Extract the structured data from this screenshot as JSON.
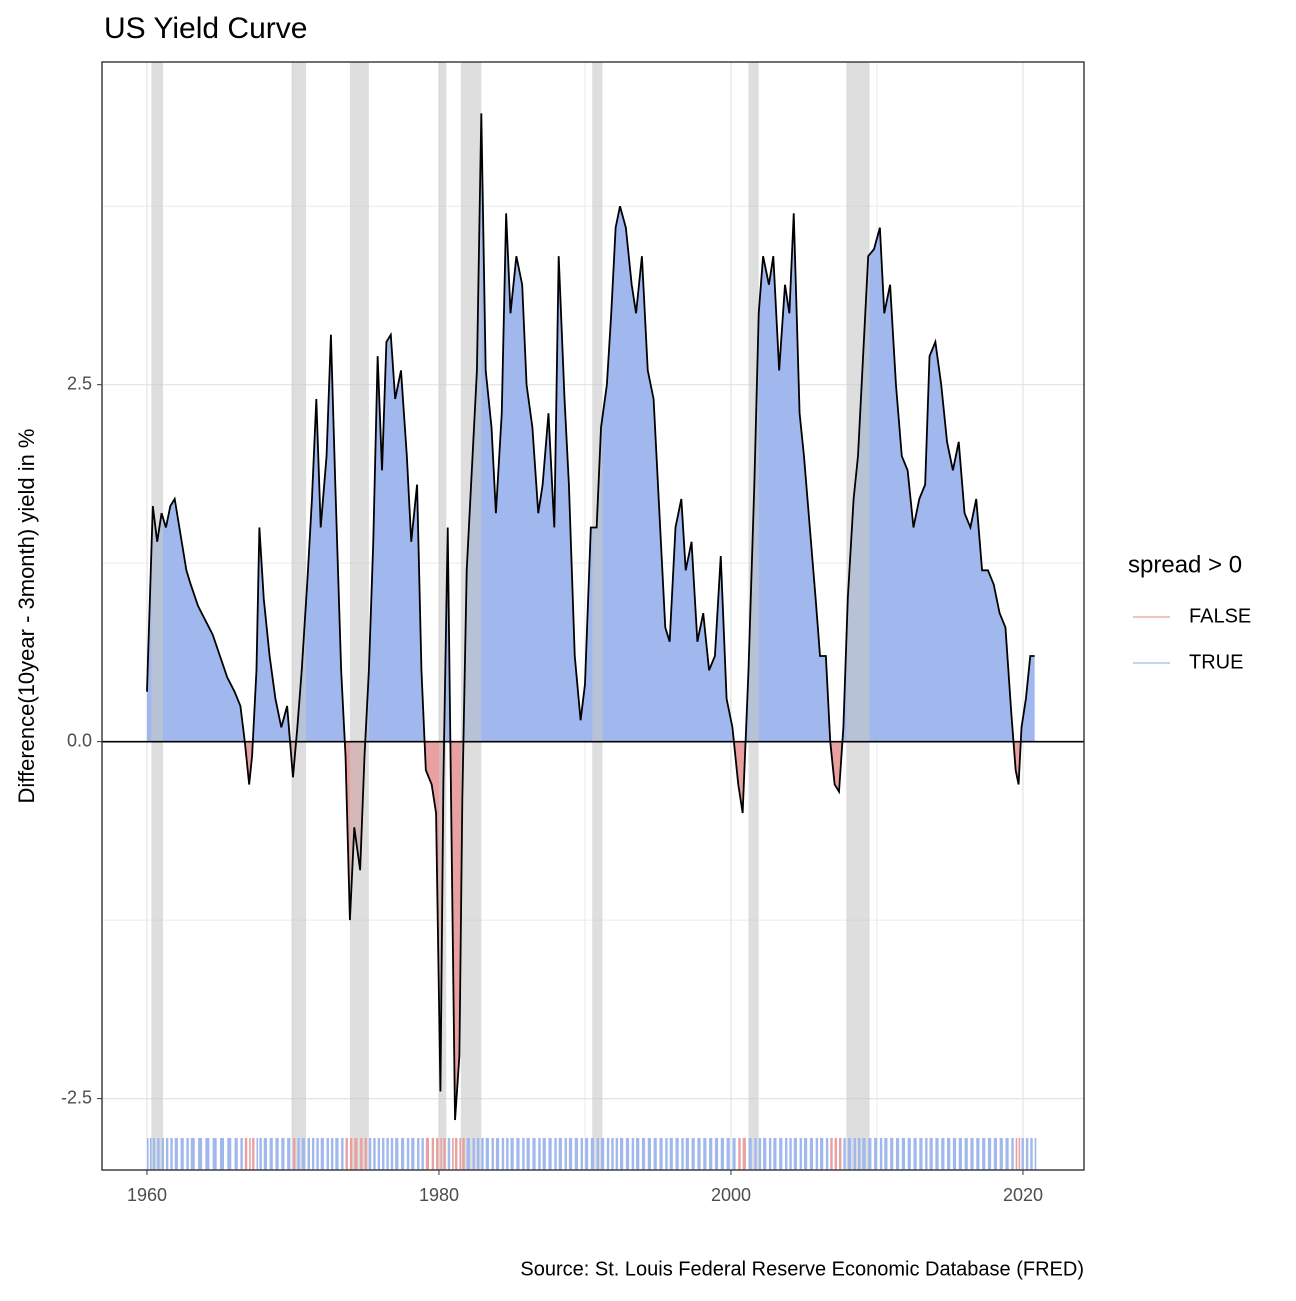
{
  "chart_data": {
    "type": "area",
    "title": "US Yield Curve",
    "y_label": "Difference(10year - 3month) yield in %",
    "caption": "Source: St. Louis Federal Reserve Economic Database (FRED)",
    "xlim": [
      1956.92,
      2024.18
    ],
    "ylim": [
      -3.0,
      4.76
    ],
    "xticks": [
      1960,
      1980,
      2000,
      2020
    ],
    "xminorticks": [
      1970,
      1990,
      2010
    ],
    "yticks": [
      -2.5,
      {
        "value": 0,
        "label": "0.0"
      },
      2.5
    ],
    "yminorticks": [
      -1.25,
      1.25,
      3.75
    ],
    "grid": true,
    "hline": 0,
    "line_color": "#000000",
    "recession_color": "#c8c8c8",
    "recessions": [
      [
        1960.3,
        1961.1
      ],
      [
        1969.9,
        1970.9
      ],
      [
        1973.9,
        1975.2
      ],
      [
        1980.0,
        1980.5
      ],
      [
        1981.5,
        1982.9
      ],
      [
        1990.5,
        1991.2
      ],
      [
        2001.2,
        2001.9
      ],
      [
        2007.9,
        2009.5
      ]
    ],
    "legend": {
      "title": "spread > 0",
      "position": "right",
      "entries": [
        {
          "label": "FALSE",
          "color": "#e8a0a0"
        },
        {
          "label": "TRUE",
          "color": "#a0b8ee"
        }
      ]
    },
    "x": [
      1960.0,
      1960.2,
      1960.4,
      1960.7,
      1961.0,
      1961.3,
      1961.6,
      1961.9,
      1962.3,
      1962.7,
      1963.0,
      1963.5,
      1964.0,
      1964.5,
      1965.0,
      1965.5,
      1966.0,
      1966.4,
      1966.7,
      1967.0,
      1967.2,
      1967.5,
      1967.7,
      1968.0,
      1968.4,
      1968.8,
      1969.2,
      1969.6,
      1970.0,
      1970.3,
      1970.6,
      1971.0,
      1971.3,
      1971.6,
      1971.9,
      1972.3,
      1972.6,
      1972.9,
      1973.3,
      1973.6,
      1973.9,
      1974.2,
      1974.6,
      1974.9,
      1975.2,
      1975.5,
      1975.8,
      1976.1,
      1976.4,
      1976.7,
      1977.0,
      1977.4,
      1977.8,
      1978.1,
      1978.5,
      1978.8,
      1979.1,
      1979.5,
      1979.8,
      1980.1,
      1980.3,
      1980.6,
      1980.9,
      1981.1,
      1981.4,
      1981.6,
      1981.9,
      1982.3,
      1982.6,
      1982.9,
      1983.2,
      1983.6,
      1983.9,
      1984.3,
      1984.6,
      1984.9,
      1985.3,
      1985.7,
      1986.0,
      1986.4,
      1986.8,
      1987.1,
      1987.5,
      1987.9,
      1988.2,
      1988.6,
      1988.9,
      1989.3,
      1989.7,
      1990.0,
      1990.4,
      1990.8,
      1991.1,
      1991.5,
      1991.8,
      1992.1,
      1992.4,
      1992.8,
      1993.2,
      1993.5,
      1993.9,
      1994.3,
      1994.7,
      1995.1,
      1995.5,
      1995.8,
      1996.2,
      1996.6,
      1996.9,
      1997.3,
      1997.7,
      1998.1,
      1998.5,
      1998.9,
      1999.3,
      1999.7,
      2000.1,
      2000.5,
      2000.8,
      2001.2,
      2001.6,
      2001.9,
      2002.2,
      2002.6,
      2002.9,
      2003.3,
      2003.7,
      2004.0,
      2004.3,
      2004.7,
      2005.0,
      2005.4,
      2005.8,
      2006.1,
      2006.5,
      2006.8,
      2007.1,
      2007.4,
      2007.7,
      2008.0,
      2008.4,
      2008.7,
      2009.0,
      2009.4,
      2009.8,
      2010.2,
      2010.5,
      2010.9,
      2011.3,
      2011.7,
      2012.1,
      2012.5,
      2012.9,
      2013.3,
      2013.6,
      2014.0,
      2014.4,
      2014.8,
      2015.2,
      2015.6,
      2016.0,
      2016.4,
      2016.8,
      2017.2,
      2017.6,
      2018.0,
      2018.4,
      2018.8,
      2019.2,
      2019.5,
      2019.7,
      2019.9,
      2020.2,
      2020.5,
      2020.8
    ],
    "values": [
      0.35,
      1.0,
      1.65,
      1.4,
      1.6,
      1.5,
      1.65,
      1.7,
      1.45,
      1.2,
      1.1,
      0.95,
      0.85,
      0.75,
      0.6,
      0.45,
      0.35,
      0.25,
      0.0,
      -0.3,
      -0.1,
      0.5,
      1.5,
      1.0,
      0.6,
      0.3,
      0.1,
      0.25,
      -0.25,
      0.1,
      0.5,
      1.15,
      1.7,
      2.4,
      1.5,
      2.0,
      2.85,
      1.8,
      0.5,
      -0.1,
      -1.25,
      -0.6,
      -0.9,
      -0.1,
      0.5,
      1.4,
      2.7,
      1.9,
      2.8,
      2.85,
      2.4,
      2.6,
      2.0,
      1.4,
      1.8,
      0.5,
      -0.2,
      -0.3,
      -0.5,
      -2.45,
      -0.3,
      1.5,
      -1.0,
      -2.65,
      -2.2,
      -0.4,
      1.2,
      2.0,
      2.6,
      4.4,
      2.6,
      2.2,
      1.6,
      2.3,
      3.7,
      3.0,
      3.4,
      3.2,
      2.5,
      2.2,
      1.6,
      1.8,
      2.3,
      1.5,
      3.4,
      2.4,
      1.8,
      0.6,
      0.15,
      0.4,
      1.5,
      1.5,
      2.2,
      2.5,
      3.0,
      3.6,
      3.75,
      3.6,
      3.2,
      3.0,
      3.4,
      2.6,
      2.4,
      1.6,
      0.8,
      0.7,
      1.5,
      1.7,
      1.2,
      1.4,
      0.7,
      0.9,
      0.5,
      0.6,
      1.3,
      0.3,
      0.1,
      -0.3,
      -0.5,
      0.5,
      1.8,
      3.0,
      3.4,
      3.2,
      3.4,
      2.6,
      3.2,
      3.0,
      3.7,
      2.3,
      2.0,
      1.5,
      1.0,
      0.6,
      0.6,
      0.0,
      -0.3,
      -0.35,
      0.1,
      1.0,
      1.7,
      2.0,
      2.6,
      3.4,
      3.45,
      3.6,
      3.0,
      3.2,
      2.5,
      2.0,
      1.9,
      1.5,
      1.7,
      1.8,
      2.7,
      2.8,
      2.5,
      2.1,
      1.9,
      2.1,
      1.6,
      1.5,
      1.7,
      1.2,
      1.2,
      1.1,
      0.9,
      0.8,
      0.2,
      -0.2,
      -0.3,
      0.1,
      0.3,
      0.6,
      0.6
    ]
  }
}
